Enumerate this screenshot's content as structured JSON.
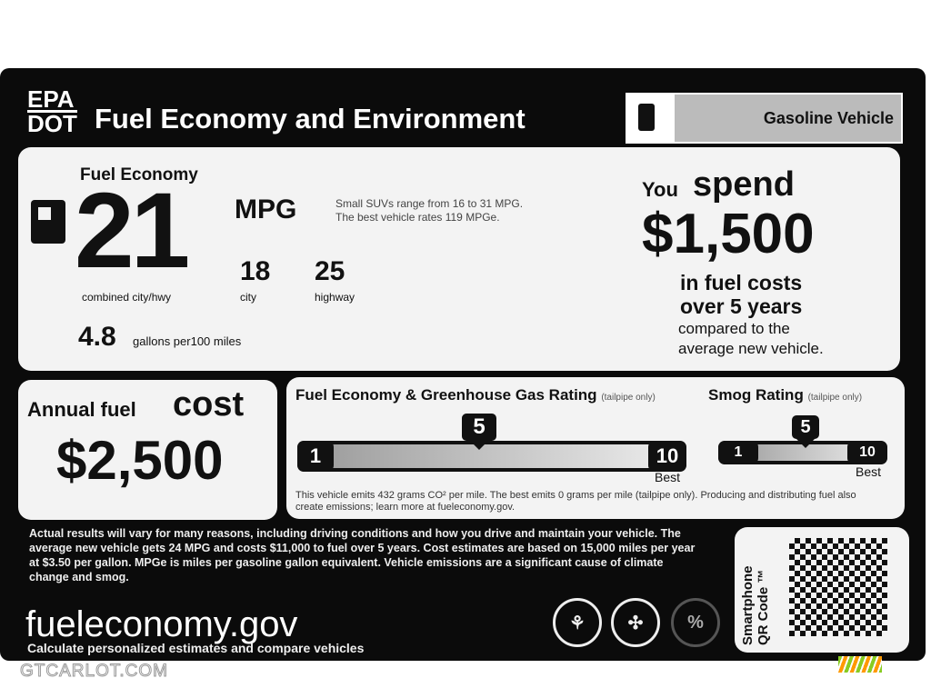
{
  "header": {
    "agency_top": "EPA",
    "agency_bottom": "DOT",
    "title": "Fuel Economy and Environment",
    "vehicle_type": "Gasoline Vehicle"
  },
  "fuel_economy": {
    "heading": "Fuel Economy",
    "combined": "21",
    "unit": "MPG",
    "combined_label": "combined city/hwy",
    "city": "18",
    "city_label": "city",
    "highway": "25",
    "highway_label": "highway",
    "range_note_1": "Small SUVs range from 16 to 31 MPG.",
    "range_note_2": "The best vehicle rates 119 MPGe.",
    "gallons": "4.8",
    "gallons_label": "gallons per100 miles"
  },
  "spend": {
    "you": "You",
    "spend": "spend",
    "amount": "$1,500",
    "line1": "in fuel costs",
    "line2": "over 5 years",
    "line3": "compared to the",
    "line4": "average new vehicle."
  },
  "annual": {
    "label": "Annual fuel",
    "cost_word": "cost",
    "amount": "$2,500"
  },
  "ghg_rating": {
    "title": "Fuel Economy & Greenhouse Gas Rating",
    "qualifier": "(tailpipe only)",
    "value": 5,
    "value_label": "5",
    "min": "1",
    "max": "10",
    "best": "Best"
  },
  "smog_rating": {
    "title": "Smog Rating",
    "qualifier": "(tailpipe only)",
    "value": 5,
    "value_label": "5",
    "min": "1",
    "max": "10",
    "best": "Best"
  },
  "emissions_note": "This vehicle emits 432 grams CO² per mile. The best emits 0 grams per mile (tailpipe only). Producing and distributing fuel also create emissions; learn more at fueleconomy.gov.",
  "disclaimer": "Actual results will vary for many reasons, including driving conditions and how you drive and maintain your vehicle. The average new vehicle gets 24 MPG and costs $11,000 to fuel over 5 years. Cost estimates are based on 15,000 miles per year at $3.50 per gallon. MPGe is miles per gasoline gallon equivalent. Vehicle emissions are a significant cause of climate change and smog.",
  "website": "fueleconomy.gov",
  "website_sub": "Calculate personalized estimates and compare vehicles",
  "qr": {
    "label_1": "Smartphone",
    "label_2": "QR Code ™"
  },
  "watermark": "GTCARLOT.COM",
  "icons": [
    "fuel-pump-icon",
    "epa-seal-icon",
    "dot-seal-icon",
    "percent-seal-icon",
    "qr-code-icon"
  ]
}
